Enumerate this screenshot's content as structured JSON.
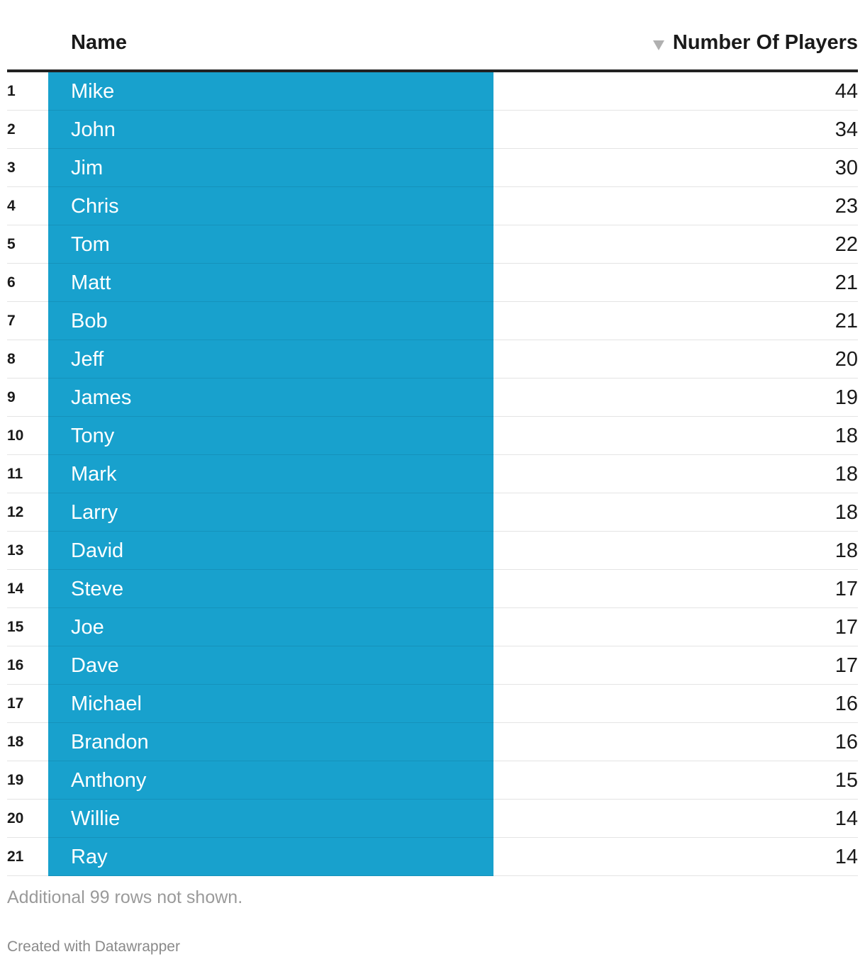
{
  "chart_data": {
    "type": "table",
    "columns": [
      "Name",
      "Number Of Players"
    ],
    "sort": {
      "column": "Number Of Players",
      "direction": "descending"
    },
    "rows": [
      {
        "rank": "1",
        "name": "Mike",
        "players": 44
      },
      {
        "rank": "2",
        "name": "John",
        "players": 34
      },
      {
        "rank": "3",
        "name": "Jim",
        "players": 30
      },
      {
        "rank": "4",
        "name": "Chris",
        "players": 23
      },
      {
        "rank": "5",
        "name": "Tom",
        "players": 22
      },
      {
        "rank": "6",
        "name": "Matt",
        "players": 21
      },
      {
        "rank": "7",
        "name": "Bob",
        "players": 21
      },
      {
        "rank": "8",
        "name": "Jeff",
        "players": 20
      },
      {
        "rank": "9",
        "name": "James",
        "players": 19
      },
      {
        "rank": "10",
        "name": "Tony",
        "players": 18
      },
      {
        "rank": "11",
        "name": "Mark",
        "players": 18
      },
      {
        "rank": "12",
        "name": "Larry",
        "players": 18
      },
      {
        "rank": "13",
        "name": "David",
        "players": 18
      },
      {
        "rank": "14",
        "name": "Steve",
        "players": 17
      },
      {
        "rank": "15",
        "name": "Joe",
        "players": 17
      },
      {
        "rank": "16",
        "name": "Dave",
        "players": 17
      },
      {
        "rank": "17",
        "name": "Michael",
        "players": 16
      },
      {
        "rank": "18",
        "name": "Brandon",
        "players": 16
      },
      {
        "rank": "19",
        "name": "Anthony",
        "players": 15
      },
      {
        "rank": "20",
        "name": "Willie",
        "players": 14
      },
      {
        "rank": "21",
        "name": "Ray",
        "players": 14
      }
    ],
    "notes": "Additional 99 rows not shown.",
    "credit": "Created with Datawrapper"
  },
  "colors": {
    "name_highlight": "#18a1cd",
    "header_rule": "#222222",
    "muted_text": "#9a9a9a"
  },
  "icons": {
    "sort": "sort-descending-icon"
  }
}
